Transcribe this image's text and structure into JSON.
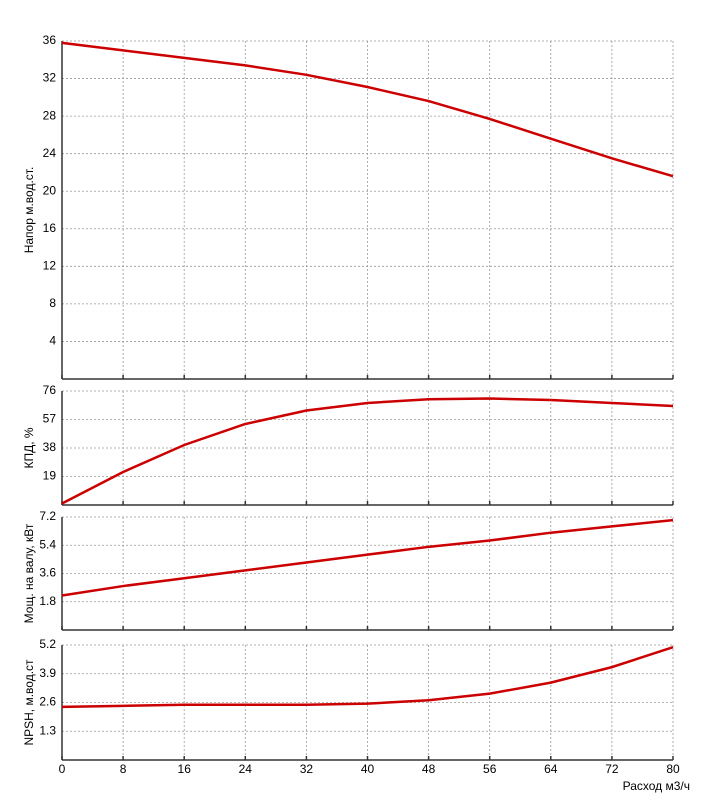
{
  "chart_data": [
    {
      "type": "line",
      "ylabel": "Напор м.вод.ст.",
      "xlim": [
        0,
        80
      ],
      "xticks": [
        0,
        8,
        16,
        24,
        32,
        40,
        48,
        56,
        64,
        72,
        80
      ],
      "ylim": [
        0,
        36
      ],
      "yticks": [
        4,
        8,
        12,
        16,
        20,
        24,
        28,
        32,
        36
      ],
      "grid": true,
      "color": "#cc0000",
      "x": [
        0,
        8,
        16,
        24,
        32,
        40,
        48,
        56,
        64,
        72,
        80
      ],
      "values": [
        35.8,
        35.0,
        34.2,
        33.4,
        32.4,
        31.1,
        29.6,
        27.7,
        25.6,
        23.5,
        21.6
      ]
    },
    {
      "type": "line",
      "ylabel": "КПД, %",
      "xlim": [
        0,
        80
      ],
      "xticks": [
        0,
        8,
        16,
        24,
        32,
        40,
        48,
        56,
        64,
        72,
        80
      ],
      "ylim": [
        0,
        76
      ],
      "yticks": [
        19,
        38,
        57,
        76
      ],
      "grid": true,
      "color": "#cc0000",
      "x": [
        0,
        8,
        16,
        24,
        32,
        40,
        48,
        56,
        64,
        72,
        80
      ],
      "values": [
        1,
        22,
        40,
        54,
        63,
        68,
        70.5,
        71,
        70,
        68,
        66
      ]
    },
    {
      "type": "line",
      "ylabel": "Мощ. на валу, кВт",
      "xlim": [
        0,
        80
      ],
      "xticks": [
        0,
        8,
        16,
        24,
        32,
        40,
        48,
        56,
        64,
        72,
        80
      ],
      "ylim": [
        0,
        7.2
      ],
      "yticks": [
        1.8,
        3.6,
        5.4,
        7.2
      ],
      "grid": true,
      "color": "#cc0000",
      "x": [
        0,
        8,
        16,
        24,
        32,
        40,
        48,
        56,
        64,
        72,
        80
      ],
      "values": [
        2.2,
        2.8,
        3.3,
        3.8,
        4.3,
        4.8,
        5.3,
        5.7,
        6.2,
        6.6,
        7.0
      ]
    },
    {
      "type": "line",
      "ylabel": "NPSH, м.вод.ст",
      "xlabel": "Расход м3/ч",
      "xlim": [
        0,
        80
      ],
      "xticks": [
        0,
        8,
        16,
        24,
        32,
        40,
        48,
        56,
        64,
        72,
        80
      ],
      "ylim": [
        0,
        5.2
      ],
      "yticks": [
        1.3,
        2.6,
        3.9,
        5.2
      ],
      "grid": true,
      "color": "#cc0000",
      "x": [
        0,
        8,
        16,
        24,
        32,
        40,
        48,
        56,
        64,
        72,
        80
      ],
      "values": [
        2.4,
        2.45,
        2.5,
        2.5,
        2.5,
        2.55,
        2.7,
        3.0,
        3.5,
        4.2,
        5.1
      ]
    }
  ]
}
